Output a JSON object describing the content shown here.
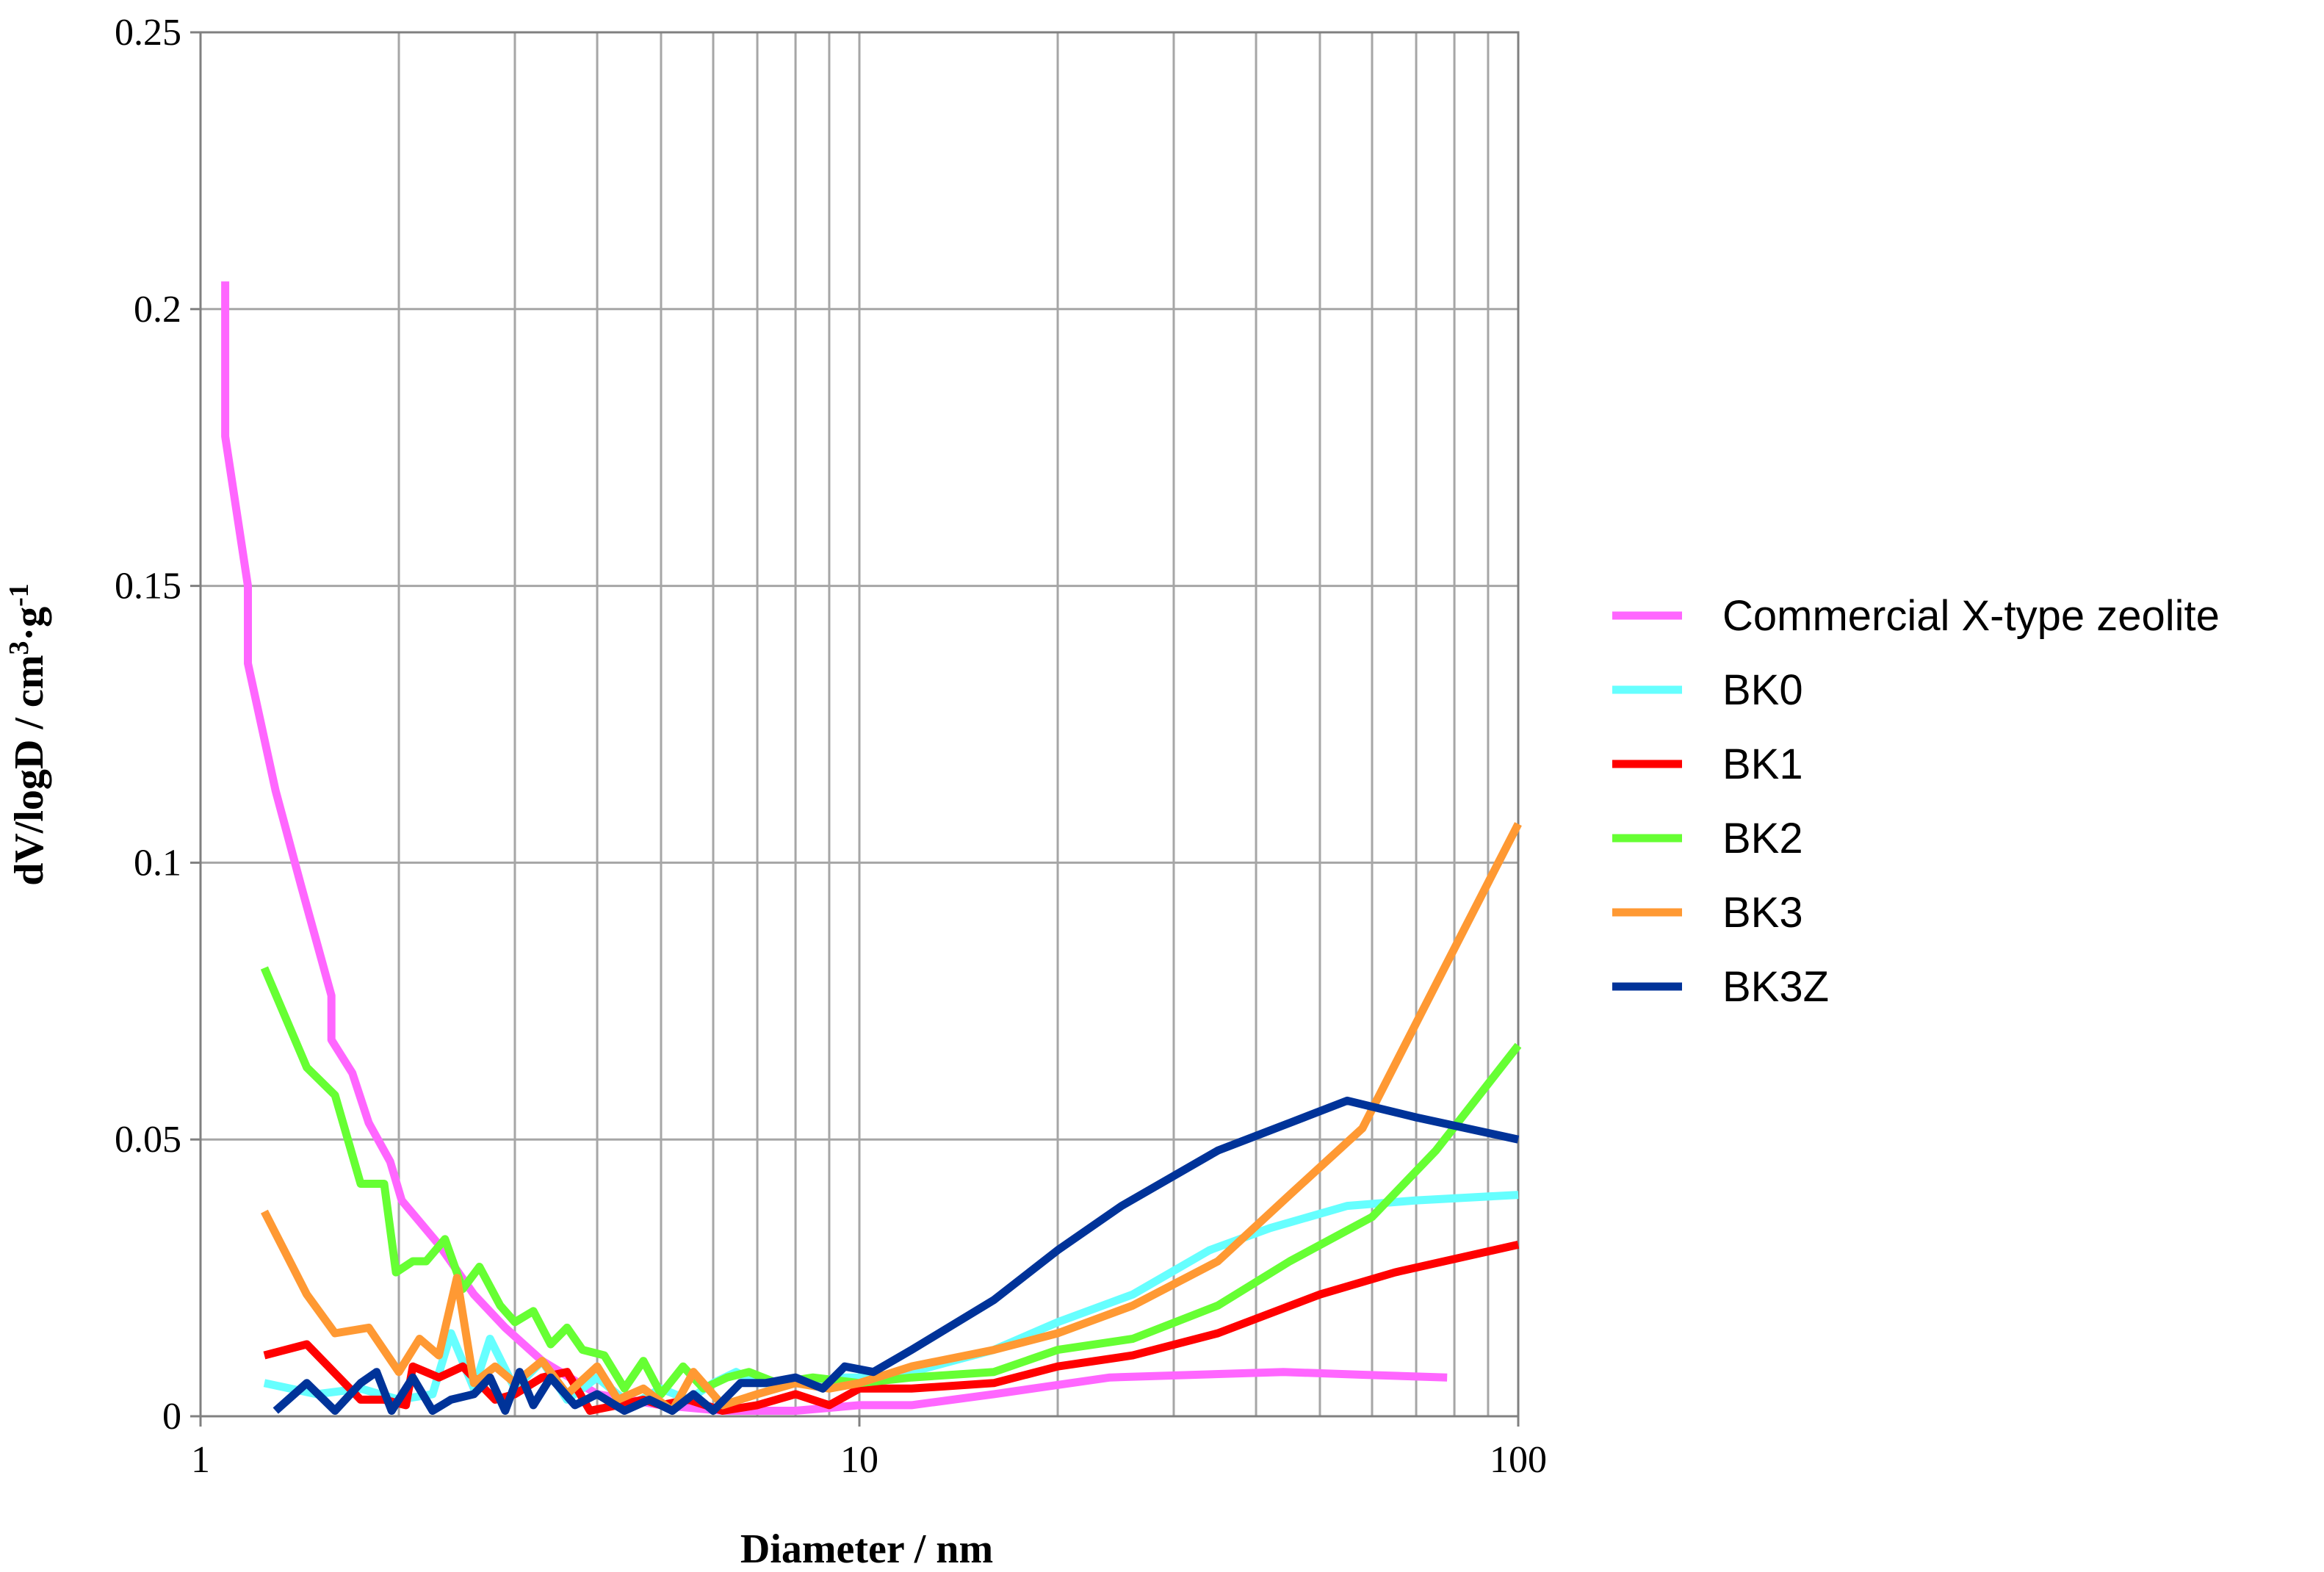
{
  "chart_data": {
    "type": "line",
    "title": "",
    "xlabel": "Diameter / nm",
    "ylabel_main": "dV/logD / cm",
    "ylabel_sup1": "3",
    "ylabel_mid": "·g",
    "ylabel_sup2": "-1",
    "xscale": "log",
    "xlim": [
      1,
      100
    ],
    "ylim": [
      0,
      0.25
    ],
    "x_ticks": [
      1,
      10,
      100
    ],
    "x_tick_labels": [
      "1",
      "10",
      "100"
    ],
    "y_ticks": [
      0,
      0.05,
      0.1,
      0.15,
      0.2,
      0.25
    ],
    "y_tick_labels": [
      "0",
      "0.05",
      "0.1",
      "0.15",
      "0.2",
      "0.25"
    ],
    "grid": true,
    "legend_position": "right",
    "series": [
      {
        "name": "Commercial X-type zeolite",
        "color": "#ff66ff",
        "points": [
          [
            1.09,
            0.205
          ],
          [
            1.09,
            0.177
          ],
          [
            1.18,
            0.15
          ],
          [
            1.18,
            0.136
          ],
          [
            1.3,
            0.113
          ],
          [
            1.42,
            0.096
          ],
          [
            1.58,
            0.076
          ],
          [
            1.58,
            0.068
          ],
          [
            1.7,
            0.062
          ],
          [
            1.8,
            0.053
          ],
          [
            1.94,
            0.046
          ],
          [
            2.02,
            0.039
          ],
          [
            2.3,
            0.031
          ],
          [
            2.6,
            0.022
          ],
          [
            2.9,
            0.016
          ],
          [
            3.3,
            0.01
          ],
          [
            4.0,
            0.004
          ],
          [
            5.0,
            0.002
          ],
          [
            6.2,
            0.001
          ],
          [
            8.0,
            0.001
          ],
          [
            10.0,
            0.002
          ],
          [
            12.0,
            0.002
          ],
          [
            16.0,
            0.004
          ],
          [
            24.0,
            0.007
          ],
          [
            44.0,
            0.008
          ],
          [
            58.0,
            0.0075
          ],
          [
            78.0,
            0.007
          ]
        ]
      },
      {
        "name": "BK0",
        "color": "#66ffff",
        "points": [
          [
            1.25,
            0.006
          ],
          [
            1.5,
            0.004
          ],
          [
            1.75,
            0.005
          ],
          [
            2.0,
            0.003
          ],
          [
            2.25,
            0.004
          ],
          [
            2.4,
            0.015
          ],
          [
            2.6,
            0.005
          ],
          [
            2.75,
            0.014
          ],
          [
            3.0,
            0.005
          ],
          [
            3.3,
            0.01
          ],
          [
            3.6,
            0.003
          ],
          [
            4.0,
            0.007
          ],
          [
            4.5,
            0.002
          ],
          [
            5.0,
            0.005
          ],
          [
            5.5,
            0.003
          ],
          [
            6.0,
            0.006
          ],
          [
            6.5,
            0.008
          ],
          [
            7.0,
            0.006
          ],
          [
            8.0,
            0.006
          ],
          [
            9.5,
            0.007
          ],
          [
            10.5,
            0.007
          ],
          [
            12.0,
            0.008
          ],
          [
            16.0,
            0.012
          ],
          [
            20.0,
            0.017
          ],
          [
            26.0,
            0.022
          ],
          [
            34.0,
            0.03
          ],
          [
            42.0,
            0.034
          ],
          [
            55.0,
            0.038
          ],
          [
            70.0,
            0.039
          ],
          [
            100.0,
            0.04
          ]
        ]
      },
      {
        "name": "BK1",
        "color": "#ff0000",
        "points": [
          [
            1.25,
            0.011
          ],
          [
            1.45,
            0.013
          ],
          [
            1.75,
            0.003
          ],
          [
            1.9,
            0.003
          ],
          [
            2.05,
            0.002
          ],
          [
            2.1,
            0.009
          ],
          [
            2.3,
            0.007
          ],
          [
            2.5,
            0.009
          ],
          [
            2.8,
            0.003
          ],
          [
            3.0,
            0.004
          ],
          [
            3.3,
            0.007
          ],
          [
            3.6,
            0.008
          ],
          [
            3.9,
            0.001
          ],
          [
            4.3,
            0.002
          ],
          [
            4.7,
            0.003
          ],
          [
            5.0,
            0.002
          ],
          [
            5.5,
            0.003
          ],
          [
            6.2,
            0.001
          ],
          [
            7.0,
            0.002
          ],
          [
            8.0,
            0.004
          ],
          [
            9.0,
            0.002
          ],
          [
            10.0,
            0.005
          ],
          [
            12.0,
            0.005
          ],
          [
            16.0,
            0.006
          ],
          [
            20.0,
            0.009
          ],
          [
            26.0,
            0.011
          ],
          [
            35.0,
            0.015
          ],
          [
            50.0,
            0.022
          ],
          [
            65.0,
            0.026
          ],
          [
            100.0,
            0.031
          ]
        ]
      },
      {
        "name": "BK2",
        "color": "#66ff33",
        "points": [
          [
            1.25,
            0.081
          ],
          [
            1.45,
            0.063
          ],
          [
            1.6,
            0.058
          ],
          [
            1.75,
            0.042
          ],
          [
            1.9,
            0.042
          ],
          [
            1.98,
            0.026
          ],
          [
            2.1,
            0.028
          ],
          [
            2.2,
            0.028
          ],
          [
            2.35,
            0.032
          ],
          [
            2.5,
            0.023
          ],
          [
            2.65,
            0.027
          ],
          [
            2.85,
            0.02
          ],
          [
            3.0,
            0.017
          ],
          [
            3.2,
            0.019
          ],
          [
            3.4,
            0.013
          ],
          [
            3.6,
            0.016
          ],
          [
            3.8,
            0.012
          ],
          [
            4.1,
            0.011
          ],
          [
            4.4,
            0.005
          ],
          [
            4.7,
            0.01
          ],
          [
            5.0,
            0.004
          ],
          [
            5.4,
            0.009
          ],
          [
            5.8,
            0.005
          ],
          [
            6.3,
            0.007
          ],
          [
            6.8,
            0.008
          ],
          [
            7.5,
            0.006
          ],
          [
            8.5,
            0.007
          ],
          [
            10.0,
            0.006
          ],
          [
            12.0,
            0.007
          ],
          [
            16.0,
            0.008
          ],
          [
            20.0,
            0.012
          ],
          [
            26.0,
            0.014
          ],
          [
            35.0,
            0.02
          ],
          [
            45.0,
            0.028
          ],
          [
            60.0,
            0.036
          ],
          [
            75.0,
            0.048
          ],
          [
            100.0,
            0.067
          ]
        ]
      },
      {
        "name": "BK3",
        "color": "#ff9933",
        "points": [
          [
            1.25,
            0.037
          ],
          [
            1.45,
            0.022
          ],
          [
            1.6,
            0.015
          ],
          [
            1.8,
            0.016
          ],
          [
            2.0,
            0.008
          ],
          [
            2.15,
            0.014
          ],
          [
            2.3,
            0.011
          ],
          [
            2.45,
            0.025
          ],
          [
            2.6,
            0.006
          ],
          [
            2.8,
            0.009
          ],
          [
            3.0,
            0.006
          ],
          [
            3.3,
            0.01
          ],
          [
            3.6,
            0.004
          ],
          [
            4.0,
            0.009
          ],
          [
            4.3,
            0.003
          ],
          [
            4.7,
            0.005
          ],
          [
            5.2,
            0.001
          ],
          [
            5.6,
            0.008
          ],
          [
            6.2,
            0.002
          ],
          [
            7.0,
            0.004
          ],
          [
            8.0,
            0.006
          ],
          [
            9.0,
            0.005
          ],
          [
            10.0,
            0.006
          ],
          [
            12.0,
            0.009
          ],
          [
            16.0,
            0.012
          ],
          [
            20.0,
            0.015
          ],
          [
            26.0,
            0.02
          ],
          [
            35.0,
            0.028
          ],
          [
            45.0,
            0.04
          ],
          [
            58.0,
            0.052
          ],
          [
            75.0,
            0.078
          ],
          [
            100.0,
            0.107
          ]
        ]
      },
      {
        "name": "BK3Z",
        "color": "#003399",
        "points": [
          [
            1.3,
            0.001
          ],
          [
            1.45,
            0.006
          ],
          [
            1.6,
            0.001
          ],
          [
            1.75,
            0.006
          ],
          [
            1.85,
            0.008
          ],
          [
            1.95,
            0.001
          ],
          [
            2.1,
            0.007
          ],
          [
            2.25,
            0.001
          ],
          [
            2.4,
            0.003
          ],
          [
            2.6,
            0.004
          ],
          [
            2.75,
            0.007
          ],
          [
            2.9,
            0.001
          ],
          [
            3.05,
            0.008
          ],
          [
            3.2,
            0.002
          ],
          [
            3.4,
            0.007
          ],
          [
            3.7,
            0.002
          ],
          [
            4.0,
            0.004
          ],
          [
            4.4,
            0.001
          ],
          [
            4.8,
            0.003
          ],
          [
            5.2,
            0.001
          ],
          [
            5.6,
            0.004
          ],
          [
            6.0,
            0.001
          ],
          [
            6.6,
            0.006
          ],
          [
            7.2,
            0.006
          ],
          [
            8.0,
            0.007
          ],
          [
            8.8,
            0.005
          ],
          [
            9.5,
            0.009
          ],
          [
            10.5,
            0.008
          ],
          [
            12.0,
            0.012
          ],
          [
            16.0,
            0.021
          ],
          [
            20.0,
            0.03
          ],
          [
            25.0,
            0.038
          ],
          [
            35.0,
            0.048
          ],
          [
            45.0,
            0.053
          ],
          [
            55.0,
            0.057
          ],
          [
            70.0,
            0.054
          ],
          [
            100.0,
            0.05
          ]
        ]
      }
    ]
  }
}
